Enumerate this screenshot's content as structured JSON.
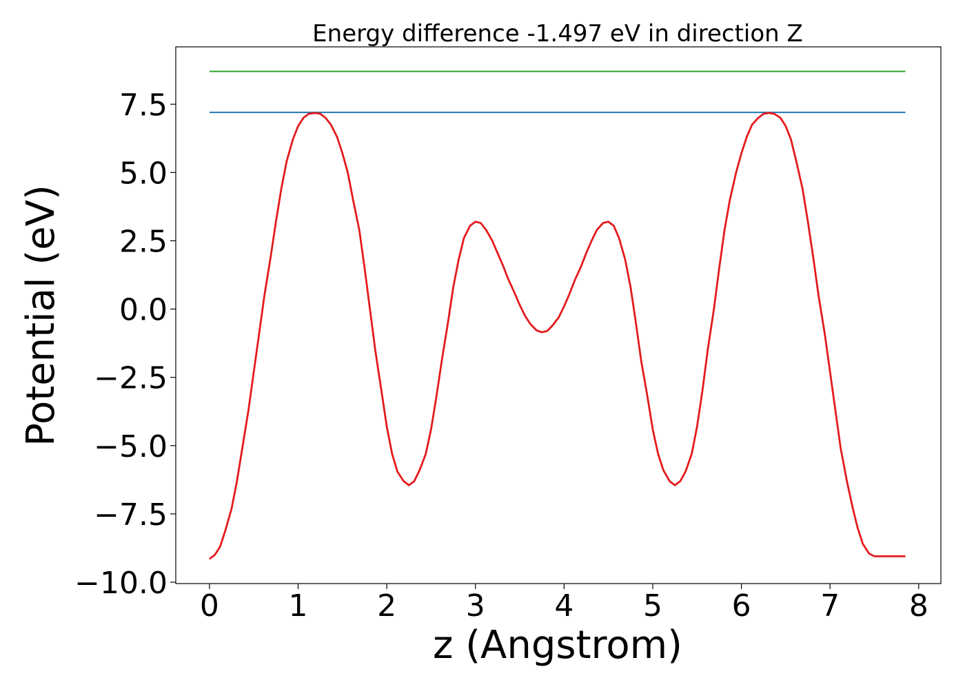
{
  "chart_data": {
    "type": "line",
    "title": "Energy difference -1.497 eV in direction Z",
    "xlabel": "z (Angstrom)",
    "ylabel": "Potential (eV)",
    "xlim": [
      -0.38,
      8.25
    ],
    "ylim": [
      -10.05,
      9.6
    ],
    "x_ticks": [
      0,
      1,
      2,
      3,
      4,
      5,
      6,
      7,
      8
    ],
    "x_tick_labels": [
      "0",
      "1",
      "2",
      "3",
      "4",
      "5",
      "6",
      "7",
      "8"
    ],
    "y_ticks": [
      7.5,
      5.0,
      2.5,
      0.0,
      -2.5,
      -5.0,
      -7.5,
      -10.0
    ],
    "y_tick_labels": [
      "7.5",
      "5.0",
      "2.5",
      "0.0",
      "−2.5",
      "−5.0",
      "−7.5",
      "−10.0"
    ],
    "grid": false,
    "series": [
      {
        "color": "#2ca02c",
        "x": [
          0.0,
          7.85
        ],
        "y": [
          8.7,
          8.7
        ]
      },
      {
        "color": "#1f77b4",
        "x": [
          0.0,
          7.85
        ],
        "y": [
          7.2,
          7.2
        ]
      },
      {
        "color": "#e41a1c",
        "x": [
          0.0,
          0.06,
          0.12,
          0.18,
          0.25,
          0.31,
          0.37,
          0.44,
          0.5,
          0.56,
          0.62,
          0.69,
          0.75,
          0.81,
          0.87,
          0.94,
          1.0,
          1.06,
          1.12,
          1.19,
          1.25,
          1.31,
          1.37,
          1.44,
          1.5,
          1.56,
          1.62,
          1.69,
          1.75,
          1.81,
          1.87,
          1.94,
          2.0,
          2.06,
          2.12,
          2.19,
          2.25,
          2.31,
          2.37,
          2.44,
          2.5,
          2.56,
          2.62,
          2.69,
          2.75,
          2.81,
          2.87,
          2.94,
          3.0,
          3.06,
          3.12,
          3.19,
          3.25,
          3.31,
          3.37,
          3.44,
          3.5,
          3.56,
          3.62,
          3.69,
          3.75,
          3.81,
          3.87,
          3.94,
          4.0,
          4.06,
          4.12,
          4.19,
          4.25,
          4.31,
          4.37,
          4.44,
          4.5,
          4.56,
          4.62,
          4.69,
          4.75,
          4.81,
          4.87,
          4.94,
          5.0,
          5.06,
          5.12,
          5.19,
          5.25,
          5.31,
          5.37,
          5.44,
          5.5,
          5.56,
          5.62,
          5.69,
          5.75,
          5.81,
          5.87,
          5.94,
          6.0,
          6.06,
          6.12,
          6.19,
          6.25,
          6.31,
          6.37,
          6.44,
          6.5,
          6.56,
          6.62,
          6.69,
          6.75,
          6.81,
          6.87,
          6.94,
          7.0,
          7.06,
          7.12,
          7.19,
          7.25,
          7.31,
          7.37,
          7.44,
          7.5,
          7.56,
          7.62,
          7.69,
          7.75,
          7.81,
          7.85
        ],
        "y": [
          -9.15,
          -9.0,
          -8.7,
          -8.1,
          -7.3,
          -6.3,
          -5.1,
          -3.7,
          -2.3,
          -0.9,
          0.5,
          1.9,
          3.2,
          4.4,
          5.4,
          6.2,
          6.7,
          7.0,
          7.15,
          7.18,
          7.15,
          7.0,
          6.75,
          6.3,
          5.7,
          5.0,
          4.0,
          2.9,
          1.5,
          0.0,
          -1.5,
          -3.0,
          -4.3,
          -5.3,
          -5.95,
          -6.3,
          -6.45,
          -6.3,
          -5.9,
          -5.3,
          -4.4,
          -3.2,
          -1.9,
          -0.5,
          0.8,
          1.8,
          2.6,
          3.05,
          3.2,
          3.15,
          2.9,
          2.5,
          2.05,
          1.6,
          1.1,
          0.6,
          0.15,
          -0.25,
          -0.55,
          -0.78,
          -0.85,
          -0.8,
          -0.6,
          -0.3,
          0.1,
          0.55,
          1.05,
          1.55,
          2.05,
          2.5,
          2.9,
          3.15,
          3.2,
          3.05,
          2.6,
          1.8,
          0.8,
          -0.5,
          -1.9,
          -3.2,
          -4.4,
          -5.3,
          -5.9,
          -6.3,
          -6.45,
          -6.3,
          -5.95,
          -5.3,
          -4.3,
          -3.0,
          -1.5,
          0.0,
          1.5,
          2.9,
          4.0,
          5.0,
          5.7,
          6.3,
          6.75,
          7.0,
          7.15,
          7.18,
          7.15,
          7.0,
          6.7,
          6.2,
          5.4,
          4.4,
          3.2,
          1.9,
          0.5,
          -0.9,
          -2.3,
          -3.7,
          -5.1,
          -6.3,
          -7.2,
          -8.0,
          -8.6,
          -8.95,
          -9.05,
          -9.05,
          -9.05,
          -9.05,
          -9.05,
          -9.05,
          -9.05
        ]
      }
    ]
  }
}
